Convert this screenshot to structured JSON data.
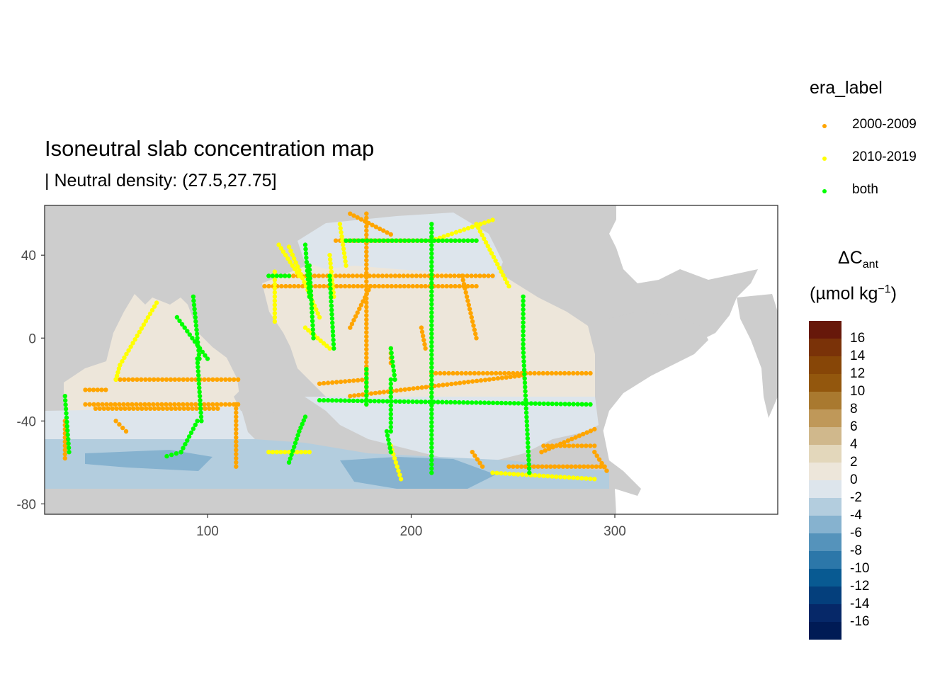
{
  "title": "Isoneutral slab concentration map",
  "subtitle": "| Neutral density: (27.5,27.75]",
  "legend_era": {
    "title": "era_label",
    "items": [
      {
        "label": "2000-2009",
        "color": "#FFA500"
      },
      {
        "label": "2010-2019",
        "color": "#FFFF00"
      },
      {
        "label": "both",
        "color": "#00FF00"
      }
    ]
  },
  "colorbar": {
    "title_line1_main": "ΔC",
    "title_line1_sub": "ant",
    "title_line2_main": "(µmol kg",
    "title_line2_sup": "−1",
    "title_line2_end": ")",
    "colors": [
      "#67180A",
      "#7A3208",
      "#874607",
      "#93570D",
      "#A9792F",
      "#BF9859",
      "#D0B88C",
      "#E3D7BB",
      "#EDE6DA",
      "#DDE5EC",
      "#B3CDDE",
      "#86B2CF",
      "#5593BB",
      "#2C77A9",
      "#085A92",
      "#043F7C",
      "#062868",
      "#001B55"
    ],
    "labels": [
      "16",
      "14",
      "12",
      "10",
      "8",
      "6",
      "4",
      "2",
      "0",
      "-2",
      "-4",
      "-6",
      "-8",
      "-10",
      "-12",
      "-14",
      "-16"
    ]
  },
  "chart_data": {
    "type": "scatter",
    "title": "Isoneutral slab concentration map",
    "subtitle": "| Neutral density: (27.5,27.75]",
    "xlabel": "",
    "ylabel": "",
    "xlim": [
      20,
      380
    ],
    "ylim": [
      -85,
      64
    ],
    "x_ticks": [
      100,
      200,
      300
    ],
    "y_ticks": [
      40,
      0,
      -40,
      -80
    ],
    "grid": true,
    "legend_position": "right",
    "series": [
      {
        "name": "2000-2009",
        "color": "#FFA500",
        "tracks": [
          [
            [
              40,
              -25
            ],
            [
              50,
              -25
            ]
          ],
          [
            [
              40,
              -32
            ],
            [
              115,
              -32
            ]
          ],
          [
            [
              45,
              -34
            ],
            [
              105,
              -34
            ]
          ],
          [
            [
              55,
              -20
            ],
            [
              115,
              -20
            ]
          ],
          [
            [
              30,
              -40
            ],
            [
              30,
              -58
            ]
          ],
          [
            [
              55,
              -40
            ],
            [
              60,
              -45
            ]
          ],
          [
            [
              114,
              -32
            ],
            [
              114,
              -62
            ]
          ],
          [
            [
              128,
              25
            ],
            [
              232,
              25
            ]
          ],
          [
            [
              138,
              30
            ],
            [
              240,
              30
            ]
          ],
          [
            [
              163,
              47
            ],
            [
              232,
              47
            ]
          ],
          [
            [
              170,
              60
            ],
            [
              190,
              50
            ]
          ],
          [
            [
              178,
              60
            ],
            [
              178,
              -32
            ]
          ],
          [
            [
              170,
              -28
            ],
            [
              255,
              -18
            ]
          ],
          [
            [
              210,
              -17
            ],
            [
              288,
              -17
            ]
          ],
          [
            [
              225,
              30
            ],
            [
              232,
              0
            ]
          ],
          [
            [
              155,
              -22
            ],
            [
              178,
              -20
            ]
          ],
          [
            [
              170,
              5
            ],
            [
              180,
              25
            ]
          ],
          [
            [
              190,
              -5
            ],
            [
              190,
              -12
            ]
          ],
          [
            [
              248,
              -62
            ],
            [
              295,
              -62
            ]
          ],
          [
            [
              265,
              -52
            ],
            [
              290,
              -52
            ]
          ],
          [
            [
              290,
              -55
            ],
            [
              296,
              -64
            ]
          ],
          [
            [
              264,
              -55
            ],
            [
              290,
              -44
            ]
          ],
          [
            [
              205,
              5
            ],
            [
              207,
              -5
            ]
          ],
          [
            [
              230,
              -55
            ],
            [
              235,
              -62
            ]
          ]
        ]
      },
      {
        "name": "2010-2019",
        "color": "#FFFF00",
        "tracks": [
          [
            [
              57,
              -13
            ],
            [
              75,
              17
            ]
          ],
          [
            [
              57,
              -13
            ],
            [
              55,
              -20
            ]
          ],
          [
            [
              135,
              45
            ],
            [
              145,
              30
            ]
          ],
          [
            [
              133,
              32
            ],
            [
              133,
              8
            ]
          ],
          [
            [
              140,
              44
            ],
            [
              155,
              10
            ]
          ],
          [
            [
              160,
              40
            ],
            [
              162,
              20
            ]
          ],
          [
            [
              165,
              55
            ],
            [
              168,
              35
            ]
          ],
          [
            [
              210,
              47
            ],
            [
              240,
              57
            ]
          ],
          [
            [
              232,
              55
            ],
            [
              248,
              25
            ]
          ],
          [
            [
              240,
              -65
            ],
            [
              290,
              -68
            ]
          ],
          [
            [
              148,
              5
            ],
            [
              160,
              -5
            ]
          ],
          [
            [
              130,
              -55
            ],
            [
              150,
              -55
            ]
          ],
          [
            [
              190,
              -52
            ],
            [
              195,
              -68
            ]
          ]
        ]
      },
      {
        "name": "both",
        "color": "#00FF00",
        "tracks": [
          [
            [
              85,
              10
            ],
            [
              100,
              -10
            ]
          ],
          [
            [
              95,
              -10
            ],
            [
              97,
              -40
            ]
          ],
          [
            [
              95,
              -40
            ],
            [
              87,
              -55
            ]
          ],
          [
            [
              87,
              -55
            ],
            [
              80,
              -57
            ]
          ],
          [
            [
              30,
              -28
            ],
            [
              32,
              -55
            ]
          ],
          [
            [
              210,
              55
            ],
            [
              210,
              -65
            ]
          ],
          [
            [
              155,
              -30
            ],
            [
              288,
              -32
            ]
          ],
          [
            [
              178,
              -32
            ],
            [
              178,
              -15
            ]
          ],
          [
            [
              255,
              20
            ],
            [
              255,
              -5
            ]
          ],
          [
            [
              255,
              -5
            ],
            [
              258,
              -65
            ]
          ],
          [
            [
              140,
              -60
            ],
            [
              145,
              -45
            ]
          ],
          [
            [
              145,
              -45
            ],
            [
              148,
              -38
            ]
          ],
          [
            [
              168,
              47
            ],
            [
              232,
              47
            ]
          ],
          [
            [
              150,
              35
            ],
            [
              152,
              0
            ]
          ],
          [
            [
              160,
              30
            ],
            [
              162,
              -5
            ]
          ],
          [
            [
              190,
              -20
            ],
            [
              190,
              -45
            ]
          ],
          [
            [
              188,
              -45
            ],
            [
              190,
              -55
            ]
          ],
          [
            [
              190,
              -5
            ],
            [
              192,
              -20
            ]
          ],
          [
            [
              130,
              30
            ],
            [
              140,
              30
            ]
          ],
          [
            [
              148,
              45
            ],
            [
              150,
              20
            ]
          ],
          [
            [
              93,
              20
            ],
            [
              96,
              -10
            ]
          ]
        ]
      }
    ]
  }
}
